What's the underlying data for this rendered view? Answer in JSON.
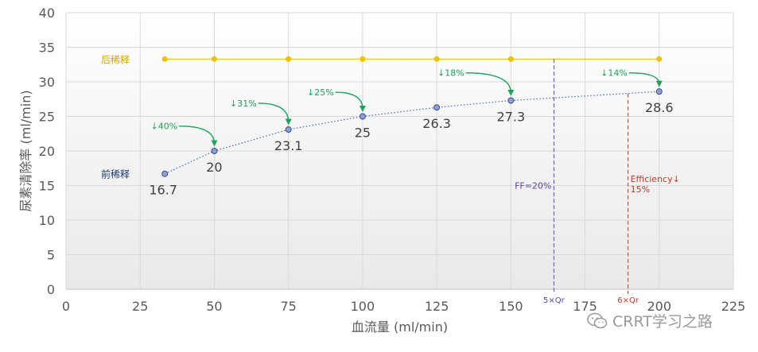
{
  "chart_data": {
    "type": "scatter",
    "xlabel": "血流量 (ml/min)",
    "ylabel": "尿素清除率 (ml/min)",
    "xlim": [
      0,
      225
    ],
    "ylim": [
      0,
      40
    ],
    "x_ticks": [
      "0",
      "25",
      "50",
      "75",
      "100",
      "125",
      "150",
      "175",
      "200",
      "225"
    ],
    "y_ticks": [
      "0",
      "5",
      "10",
      "15",
      "20",
      "25",
      "30",
      "35",
      "40"
    ],
    "grid": true,
    "series": [
      {
        "name": "后稀释",
        "color": "#f2c000",
        "x": [
          33.3,
          50,
          75,
          100,
          125,
          150,
          200
        ],
        "y": [
          33.3,
          33.3,
          33.3,
          33.3,
          33.3,
          33.3,
          33.3
        ]
      },
      {
        "name": "前稀释",
        "color": "#4a67b0",
        "x": [
          33.3,
          50,
          75,
          100,
          125,
          150,
          200
        ],
        "y": [
          16.7,
          20,
          23.1,
          25,
          26.3,
          27.3,
          28.6
        ],
        "labels": [
          "16.7",
          "20",
          "23.1",
          "25",
          "26.3",
          "27.3",
          "28.6"
        ]
      }
    ],
    "arrows": [
      {
        "text": "↓40%",
        "from": [
          33.3,
          23.6
        ],
        "to": [
          50,
          21.1
        ]
      },
      {
        "text": "↓31%",
        "from": [
          60,
          26.9
        ],
        "to": [
          75,
          24.2
        ]
      },
      {
        "text": "↓25%",
        "from": [
          86,
          28.5
        ],
        "to": [
          100,
          26.1
        ]
      },
      {
        "text": "↓18%",
        "from": [
          130,
          31.3
        ],
        "to": [
          150,
          28.4
        ]
      },
      {
        "text": "↓14%",
        "from": [
          185,
          31.3
        ],
        "to": [
          200,
          29.7
        ]
      }
    ],
    "vlines": [
      {
        "x": 164.5,
        "y_top": 33.3,
        "color": "#5b3fa8",
        "label": "FF=20%",
        "tick_label": "5×Qr"
      },
      {
        "x": 189.5,
        "y_top": 28.3,
        "color": "#c0392b",
        "label": "Efficiency↓\n15%",
        "tick_label": "6×Qr"
      }
    ],
    "colors": {
      "arrow": "#1aa35a",
      "arrow_text": "#1aa35a",
      "axis_text": "#595959",
      "grid": "#d9d9d9"
    }
  },
  "watermark": {
    "text": "CRRT学习之路",
    "icon": "wechat-icon"
  }
}
